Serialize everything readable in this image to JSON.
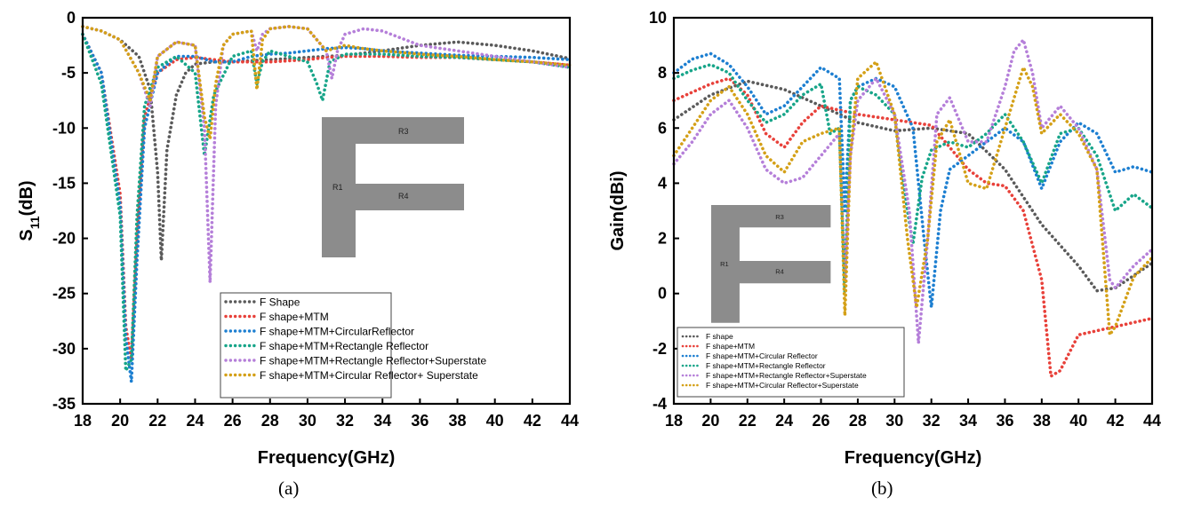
{
  "figure": {
    "caption_a": "(a)",
    "caption_b": "(b)"
  },
  "chart_data": [
    {
      "panel": "a",
      "type": "line",
      "line_style": "dotted",
      "xlabel": "Frequency(GHz)",
      "ylabel": "S11(dB)",
      "ylabel_main": "S",
      "ylabel_sub": "11",
      "ylabel_suffix": "(dB)",
      "xlim": [
        18,
        44
      ],
      "ylim": [
        -35,
        0
      ],
      "xticks": [
        18,
        20,
        22,
        24,
        26,
        28,
        30,
        32,
        34,
        36,
        38,
        40,
        42,
        44
      ],
      "yticks": [
        0,
        -5,
        -10,
        -15,
        -20,
        -25,
        -30,
        -35
      ],
      "grid": false,
      "legend_position": "bottom-right",
      "inset": {
        "shape": "F",
        "labels": [
          "R1",
          "R3",
          "R4"
        ]
      },
      "series": [
        {
          "name": "F Shape",
          "color": "#5a5a5a",
          "x": [
            18,
            19,
            20,
            21,
            21.6,
            22,
            22.2,
            22.5,
            23,
            23.5,
            24,
            25,
            26,
            28,
            30,
            32,
            34,
            36,
            38,
            40,
            42,
            44
          ],
          "y": [
            -0.8,
            -1.2,
            -2,
            -3.5,
            -6.5,
            -14,
            -22,
            -12,
            -7,
            -5,
            -4.2,
            -4,
            -4,
            -3.8,
            -3.6,
            -3.4,
            -3,
            -2.5,
            -2.2,
            -2.5,
            -3,
            -3.7
          ]
        },
        {
          "name": "F shape+MTM",
          "color": "#e8413a",
          "x": [
            18,
            19,
            20,
            20.3,
            20.6,
            20.9,
            21.3,
            22,
            23,
            24,
            25,
            26,
            27,
            28,
            29,
            30,
            31,
            32,
            34,
            36,
            38,
            40,
            42,
            44
          ],
          "y": [
            -1.5,
            -5,
            -16,
            -28,
            -31,
            -20,
            -9,
            -5,
            -3.8,
            -3.6,
            -3.8,
            -4,
            -4,
            -4,
            -3.9,
            -3.8,
            -3.6,
            -3.5,
            -3.5,
            -3.6,
            -3.6,
            -3.8,
            -4,
            -4.3
          ]
        },
        {
          "name": "F shape+MTM+CircularReflector",
          "color": "#1d7fd1",
          "x": [
            18,
            19,
            20,
            20.3,
            20.6,
            20.9,
            21.3,
            22,
            23,
            24,
            25,
            26,
            27,
            28,
            29,
            30,
            31,
            32,
            33,
            34,
            36,
            38,
            40,
            42,
            44
          ],
          "y": [
            -1.5,
            -5,
            -17,
            -29,
            -33,
            -22,
            -10,
            -5,
            -3.5,
            -3.5,
            -4,
            -4,
            -3.5,
            -3.3,
            -3.2,
            -3,
            -2.8,
            -2.7,
            -2.8,
            -3,
            -3.2,
            -3.4,
            -3.5,
            -3.6,
            -3.8
          ]
        },
        {
          "name": "F shape+MTM+Rectangle Reflector",
          "color": "#17a589",
          "x": [
            18,
            19,
            20,
            20.3,
            20.6,
            20.9,
            21.3,
            22,
            23,
            24,
            24.5,
            25,
            26,
            27,
            27.3,
            27.6,
            28,
            29,
            30,
            30.5,
            30.8,
            31.2,
            32,
            34,
            36,
            38,
            40,
            42,
            44
          ],
          "y": [
            -1.5,
            -6,
            -18,
            -32,
            -31,
            -18,
            -8,
            -4.5,
            -3.5,
            -5,
            -12.5,
            -7,
            -3.5,
            -3,
            -6,
            -4,
            -3,
            -3.5,
            -4,
            -6,
            -7.5,
            -4,
            -3.3,
            -3.3,
            -3.5,
            -3.6,
            -3.8,
            -4,
            -4.5
          ]
        },
        {
          "name": "F shape+MTM+Rectangle Reflector+Superstate",
          "color": "#b57fd9",
          "x": [
            18,
            19,
            20,
            21,
            21.6,
            22,
            23,
            24,
            24.5,
            24.8,
            25.1,
            25.5,
            26,
            27,
            27.3,
            27.6,
            28,
            29,
            30,
            31,
            31.3,
            31.6,
            32,
            33,
            34,
            36,
            38,
            40,
            42,
            44
          ],
          "y": [
            -0.8,
            -1.2,
            -2,
            -5,
            -8,
            -3.5,
            -2.2,
            -2.5,
            -10,
            -24,
            -8,
            -2.5,
            -1.5,
            -1.2,
            -3,
            -1.5,
            -1,
            -0.8,
            -1,
            -3,
            -5.5,
            -3,
            -1.5,
            -1,
            -1.2,
            -2.5,
            -3,
            -3.5,
            -4,
            -4.5
          ]
        },
        {
          "name": "F shape+MTM+Circular Reflector+ Superstate",
          "color": "#d4a017",
          "x": [
            18,
            19,
            20,
            21,
            21.6,
            22,
            23,
            24,
            24.5,
            24.8,
            25.1,
            25.5,
            26,
            27,
            27.3,
            27.6,
            28,
            29,
            30,
            31,
            32,
            33,
            34,
            36,
            38,
            40,
            42,
            44
          ],
          "y": [
            -0.8,
            -1.2,
            -2,
            -5,
            -7.5,
            -3.5,
            -2.2,
            -2.5,
            -9,
            -11,
            -6,
            -2.5,
            -1.5,
            -1.2,
            -6.5,
            -2,
            -1,
            -0.8,
            -1,
            -3,
            -2.5,
            -2.8,
            -3,
            -3.3,
            -3.5,
            -3.8,
            -4,
            -4.3
          ]
        }
      ]
    },
    {
      "panel": "b",
      "type": "line",
      "line_style": "dotted",
      "xlabel": "Frequency(GHz)",
      "ylabel": "Gain(dBi)",
      "xlim": [
        18,
        44
      ],
      "ylim": [
        -4,
        10
      ],
      "xticks": [
        18,
        20,
        22,
        24,
        26,
        28,
        30,
        32,
        34,
        36,
        38,
        40,
        42,
        44
      ],
      "yticks": [
        -4,
        -2,
        0,
        2,
        4,
        6,
        8,
        10
      ],
      "grid": false,
      "legend_position": "bottom-left",
      "inset": {
        "shape": "F",
        "labels": [
          "R1",
          "R3",
          "R4"
        ]
      },
      "series": [
        {
          "name": "F shape",
          "color": "#5a5a5a",
          "x": [
            18,
            20,
            22,
            24,
            26,
            28,
            30,
            32,
            34,
            36,
            38,
            40,
            41,
            42,
            44
          ],
          "y": [
            6.3,
            7.2,
            7.7,
            7.4,
            6.8,
            6.2,
            5.9,
            6,
            5.8,
            4.5,
            2.5,
            1,
            0.1,
            0.2,
            1.1
          ]
        },
        {
          "name": "F shape+MTM",
          "color": "#e8413a",
          "x": [
            18,
            20,
            21,
            22,
            23,
            24,
            25,
            26,
            28,
            30,
            32,
            34,
            35,
            36,
            37,
            38,
            38.5,
            39,
            40,
            42,
            44
          ],
          "y": [
            7,
            7.6,
            7.8,
            7.2,
            5.8,
            5.3,
            6.2,
            6.8,
            6.5,
            6.3,
            6.1,
            4.5,
            4,
            3.9,
            3,
            0.5,
            -3,
            -2.8,
            -1.5,
            -1.2,
            -0.9
          ]
        },
        {
          "name": "F shape+MTM+Circular Reflector",
          "color": "#1d7fd1",
          "x": [
            18,
            19,
            20,
            21,
            22,
            23,
            24,
            25,
            26,
            27,
            27.3,
            27.6,
            28,
            29,
            30,
            31,
            31.6,
            32,
            32.5,
            33,
            34,
            35,
            36,
            37,
            38,
            39,
            40,
            41,
            42,
            43,
            44
          ],
          "y": [
            8,
            8.5,
            8.7,
            8.3,
            7.5,
            6.5,
            6.8,
            7.5,
            8.2,
            7.8,
            3,
            7,
            7.5,
            7.8,
            7.5,
            6,
            2,
            -0.5,
            3,
            4.5,
            5,
            5.5,
            6,
            5.5,
            3.8,
            5.5,
            6.2,
            5.8,
            4.4,
            4.6,
            4.4
          ]
        },
        {
          "name": "F shape+MTM+Rectangle Reflector",
          "color": "#17a589",
          "x": [
            18,
            19,
            20,
            21,
            22,
            23,
            24,
            25,
            26,
            26.5,
            27,
            27.3,
            27.6,
            28,
            29,
            30,
            30.7,
            31,
            31.5,
            32,
            33,
            34,
            35,
            36,
            37,
            38,
            39,
            40,
            41,
            42,
            43,
            44
          ],
          "y": [
            7.8,
            8.1,
            8.3,
            8,
            7,
            6.2,
            6.5,
            7.2,
            7.6,
            5.8,
            6,
            0,
            7,
            7.5,
            7.2,
            6.5,
            3,
            1.8,
            4.2,
            5.2,
            5.5,
            5.3,
            5.8,
            6.5,
            5.5,
            4,
            5.8,
            6,
            5,
            3,
            3.6,
            3.1
          ]
        },
        {
          "name": "F shape+MTM+Rectangle Reflector+Superstate",
          "color": "#b57fd9",
          "x": [
            18,
            19,
            20,
            21,
            22,
            23,
            24,
            25,
            26,
            27,
            27.3,
            27.6,
            28,
            29,
            30,
            30.8,
            31.3,
            31.8,
            32.3,
            33,
            34,
            35,
            36,
            36.5,
            37,
            37.5,
            38,
            39,
            40,
            41,
            41.7,
            42,
            43,
            44
          ],
          "y": [
            4.7,
            5.5,
            6.5,
            7,
            6,
            4.5,
            4,
            4.2,
            5,
            5.8,
            0.5,
            5,
            7,
            7.8,
            6.5,
            3,
            -1.8,
            2,
            6.5,
            7.1,
            5.5,
            5.5,
            7.5,
            8.8,
            9.2,
            8,
            6,
            6.8,
            6,
            4.5,
            0.5,
            0.2,
            1,
            1.6
          ]
        },
        {
          "name": "F shape+MTM+Circular Reflector+Superstate",
          "color": "#d4a017",
          "x": [
            18,
            19,
            20,
            21,
            22,
            23,
            24,
            25,
            26,
            27,
            27.3,
            27.6,
            28,
            29,
            30,
            30.7,
            31.2,
            31.8,
            32.3,
            33,
            34,
            35,
            36,
            37,
            37.5,
            38,
            39,
            40,
            41,
            41.7,
            42,
            43,
            44
          ],
          "y": [
            5,
            6,
            7,
            7.5,
            6.5,
            5,
            4.4,
            5.5,
            5.8,
            6,
            -0.8,
            5,
            7.8,
            8.4,
            6.5,
            2,
            -0.5,
            2,
            5.5,
            6.3,
            4,
            3.8,
            6,
            8.2,
            7.5,
            5.8,
            6.5,
            5.8,
            4.5,
            -1.5,
            -1.2,
            0.6,
            1.3
          ]
        }
      ]
    }
  ]
}
